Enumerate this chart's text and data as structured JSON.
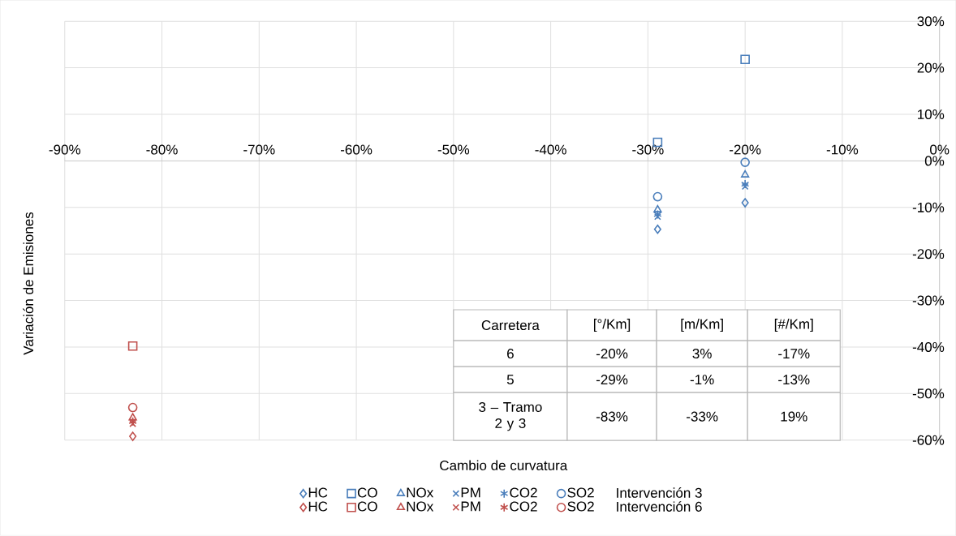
{
  "chart_data": {
    "type": "scatter",
    "xlabel": "Cambio de curvatura",
    "ylabel": "Variación de Emisiones",
    "xlim": [
      -90,
      0
    ],
    "ylim": [
      -60,
      30
    ],
    "xticks": [
      {
        "value": -90,
        "label": "-90%"
      },
      {
        "value": -80,
        "label": "-80%"
      },
      {
        "value": -70,
        "label": "-70%"
      },
      {
        "value": -60,
        "label": "-60%"
      },
      {
        "value": -50,
        "label": "-50%"
      },
      {
        "value": -40,
        "label": "-40%"
      },
      {
        "value": -30,
        "label": "-30%"
      },
      {
        "value": -20,
        "label": "-20%"
      },
      {
        "value": -10,
        "label": "-10%"
      },
      {
        "value": 0,
        "label": "0%"
      }
    ],
    "yticks": [
      {
        "value": 30,
        "label": "30%"
      },
      {
        "value": 20,
        "label": "20%"
      },
      {
        "value": 10,
        "label": "10%"
      },
      {
        "value": 0,
        "label": "0%"
      },
      {
        "value": -10,
        "label": "-10%"
      },
      {
        "value": -20,
        "label": "-20%"
      },
      {
        "value": -30,
        "label": "-30%"
      },
      {
        "value": -40,
        "label": "-40%"
      },
      {
        "value": -50,
        "label": "-50%"
      },
      {
        "value": -60,
        "label": "-60%"
      }
    ],
    "grid": true,
    "legend": "bottom",
    "series": [
      {
        "name": "HC",
        "color": "#4a7ebb",
        "marker": "diamond",
        "x": [
          -20,
          -29
        ],
        "values": [
          -9,
          -14.7
        ]
      },
      {
        "name": "CO",
        "color": "#4a7ebb",
        "marker": "square",
        "x": [
          -20,
          -29
        ],
        "values": [
          21.8,
          4
        ]
      },
      {
        "name": "NOx",
        "color": "#4a7ebb",
        "marker": "triangle",
        "x": [
          -20,
          -29
        ],
        "values": [
          -3,
          -10.5
        ]
      },
      {
        "name": "PM",
        "color": "#4a7ebb",
        "marker": "cross",
        "x": [
          -20,
          -29
        ],
        "values": [
          -5.5,
          -12
        ]
      },
      {
        "name": "CO2",
        "color": "#4a7ebb",
        "x": [
          -20,
          -29
        ],
        "values": [
          -5,
          -11.5
        ]
      },
      {
        "name": "SO2",
        "color": "#4a7ebb",
        "marker": "circle",
        "x": [
          -20,
          -29
        ],
        "values": [
          -0.3,
          -7.7
        ]
      },
      {
        "name": "HC",
        "color": "#c0504d",
        "marker": "diamond",
        "x": [
          -83
        ],
        "values": [
          -59.2
        ]
      },
      {
        "name": "CO",
        "color": "#c0504d",
        "marker": "square",
        "x": [
          -83
        ],
        "values": [
          -39.8
        ]
      },
      {
        "name": "NOx",
        "color": "#c0504d",
        "marker": "triangle",
        "x": [
          -83
        ],
        "values": [
          -55.2
        ]
      },
      {
        "name": "PM",
        "color": "#c0504d",
        "marker": "cross",
        "x": [
          -83
        ],
        "values": [
          -56.5
        ]
      },
      {
        "name": "CO2",
        "color": "#c0504d",
        "x": [
          -83
        ],
        "values": [
          -56
        ]
      },
      {
        "name": "SO2",
        "color": "#c0504d",
        "marker": "circle",
        "x": [
          -83
        ],
        "values": [
          -53
        ]
      }
    ],
    "annotations": [
      "Carretera",
      "[°/Km]",
      "[m/Km]",
      "[#/Km]",
      "6",
      "-20%",
      "3%",
      "-17%",
      "5",
      "-29%",
      "-1%",
      "-13%",
      "3 – Tramo 2 y 3",
      "-83%",
      "-33%",
      "19%",
      "Intervención 3",
      "Intervención 6"
    ]
  }
}
